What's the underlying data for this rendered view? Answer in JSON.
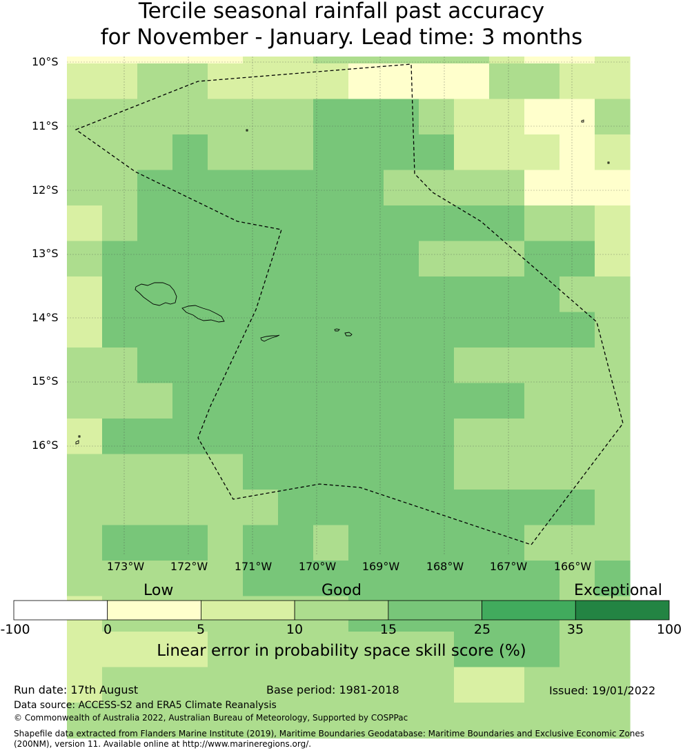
{
  "title": {
    "line1": "Tercile seasonal rainfall past accuracy",
    "line2": "for November - January. Lead time: 3 months"
  },
  "map": {
    "lat_labels": [
      "10°S",
      "11°S",
      "12°S",
      "13°S",
      "14°S",
      "15°S",
      "16°S"
    ],
    "lon_labels": [
      "173°W",
      "172°W",
      "171°W",
      "170°W",
      "169°W",
      "168°W",
      "167°W",
      "166°W"
    ],
    "colors": [
      "#ffffff",
      "#ffffcc",
      "#d9f0a3",
      "#addd8e",
      "#78c679",
      "#41ab5d",
      "#238443"
    ],
    "grid_cells": [
      "1111122333332112",
      "2233222211113322",
      "3333333444322113",
      "3334333444422212",
      "3344444443333111",
      "2344444444444332",
      "3444444444333442",
      "2444444444444433",
      "2444444444444443",
      "3344444444433333",
      "3334444444444333",
      "2444444444433333",
      "3333344444433333",
      "3333334444444443",
      "3444344344444333",
      "3333344444444434",
      "2333333344444433",
      "2222333333344433",
      "2333333333322333",
      "3333333333333333"
    ],
    "eez_boundary_style": "dashed"
  },
  "colorbar": {
    "categories": [
      "Low",
      "Good",
      "Exceptional"
    ],
    "ticks": [
      "-100",
      "0",
      "5",
      "10",
      "15",
      "25",
      "35",
      "100"
    ],
    "colors": [
      "#ffffff",
      "#ffffcc",
      "#d9f0a3",
      "#addd8e",
      "#78c679",
      "#41ab5d",
      "#238443"
    ],
    "label": "Linear error in probability space skill score (%)"
  },
  "footer": {
    "run_date": "Run date: 17th August",
    "base_period": "Base period: 1981-2018",
    "issued": "Issued: 19/01/2022",
    "data_source": "Data source: ACCESS-S2 and ERA5 Climate Reanalysis",
    "copyright": "© Commonwealth of Australia 2022, Australian Bureau of Meteorology, Supported by COSPPac",
    "shapefile_line1": "Shapefile data extracted from Flanders Marine Institute (2019), Maritime Boundaries Geodatabase: Maritime Boundaries and Exclusive Economic Zones",
    "shapefile_line2": "(200NM), version 11. Available online at http://www.marineregions.org/."
  }
}
